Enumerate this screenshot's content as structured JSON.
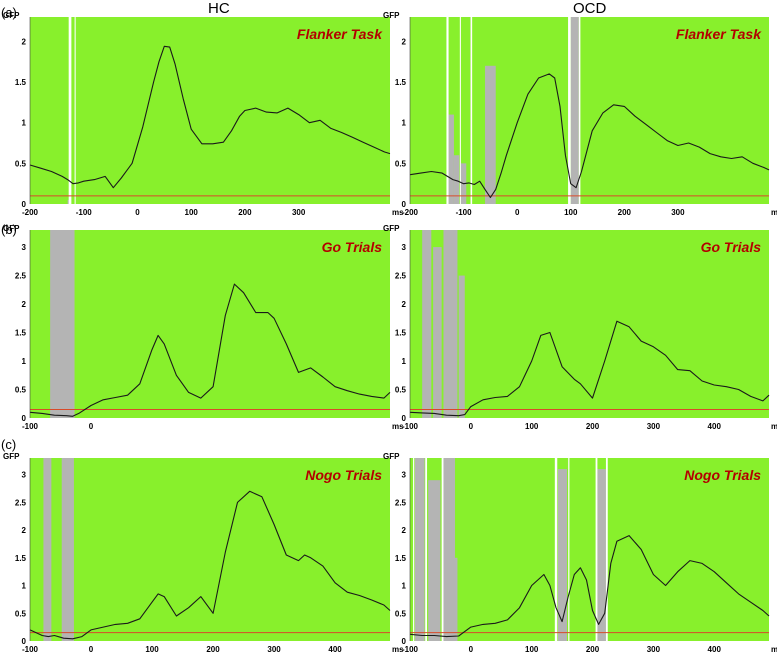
{
  "figure": {
    "columns": [
      "HC",
      "OCD"
    ],
    "rows": [
      "(a)",
      "(b)",
      "(c)"
    ],
    "background_color": "#88f02c",
    "curve_color": "#1a1a1a",
    "threshold_color": "#d94a2a",
    "significance_color": "#b4b4b4"
  },
  "chart_data": [
    {
      "type": "line",
      "group": "HC",
      "row": "(a)",
      "title": "Flanker Task",
      "ylabel": "GFP",
      "xlabel": "ms",
      "xlim": [
        -200,
        470
      ],
      "ylim": [
        0,
        2.3
      ],
      "xticks": [
        -200,
        -100,
        0,
        100,
        200,
        300
      ],
      "yticks": [
        0,
        0.5,
        1,
        1.5,
        2
      ],
      "threshold": 0.1,
      "white_gaps": [
        [
          -128,
          -123
        ],
        [
          -117,
          -115
        ]
      ],
      "significance": [
        [
          -130,
          -126,
          0.05
        ]
      ],
      "x": [
        -200,
        -180,
        -160,
        -140,
        -130,
        -120,
        -110,
        -100,
        -80,
        -60,
        -45,
        -30,
        -10,
        10,
        30,
        40,
        50,
        60,
        70,
        85,
        100,
        120,
        140,
        160,
        175,
        190,
        200,
        220,
        240,
        260,
        280,
        300,
        320,
        340,
        360,
        380,
        400,
        420,
        440,
        460,
        470
      ],
      "y": [
        0.48,
        0.44,
        0.4,
        0.34,
        0.3,
        0.25,
        0.26,
        0.28,
        0.3,
        0.34,
        0.2,
        0.32,
        0.5,
        0.95,
        1.5,
        1.75,
        1.94,
        1.93,
        1.72,
        1.3,
        0.92,
        0.74,
        0.74,
        0.76,
        0.9,
        1.08,
        1.15,
        1.18,
        1.13,
        1.12,
        1.18,
        1.1,
        1.0,
        1.03,
        0.93,
        0.88,
        0.82,
        0.76,
        0.7,
        0.64,
        0.62
      ]
    },
    {
      "type": "line",
      "group": "OCD",
      "row": "(a)",
      "title": "Flanker Task",
      "ylabel": "GFP",
      "xlabel": "ms",
      "xlim": [
        -200,
        470
      ],
      "ylim": [
        0,
        2.3
      ],
      "xticks": [
        -200,
        -100,
        0,
        100,
        200,
        300
      ],
      "yticks": [
        0,
        0.5,
        1,
        1.5,
        2
      ],
      "threshold": 0.1,
      "white_gaps": [
        [
          -132,
          -128
        ],
        [
          -107,
          -105
        ],
        [
          -87,
          -84
        ],
        [
          95,
          100
        ],
        [
          115,
          118
        ]
      ],
      "significance": [
        [
          -128,
          -118,
          1.1
        ],
        [
          -118,
          -108,
          0.6
        ],
        [
          -105,
          -95,
          0.5
        ],
        [
          -60,
          -40,
          1.7
        ],
        [
          100,
          115,
          2.3
        ]
      ],
      "x": [
        -200,
        -180,
        -160,
        -140,
        -130,
        -120,
        -110,
        -100,
        -90,
        -80,
        -70,
        -60,
        -50,
        -40,
        -30,
        -20,
        0,
        20,
        40,
        60,
        70,
        80,
        90,
        100,
        110,
        120,
        140,
        160,
        180,
        200,
        220,
        240,
        260,
        280,
        300,
        320,
        340,
        360,
        380,
        400,
        420,
        440,
        460,
        470
      ],
      "y": [
        0.36,
        0.38,
        0.4,
        0.38,
        0.34,
        0.3,
        0.28,
        0.25,
        0.26,
        0.24,
        0.28,
        0.18,
        0.08,
        0.18,
        0.38,
        0.6,
        1.0,
        1.35,
        1.55,
        1.6,
        1.55,
        1.2,
        0.6,
        0.25,
        0.2,
        0.4,
        0.9,
        1.12,
        1.22,
        1.2,
        1.08,
        0.98,
        0.88,
        0.78,
        0.72,
        0.75,
        0.7,
        0.62,
        0.58,
        0.56,
        0.58,
        0.5,
        0.45,
        0.42
      ]
    },
    {
      "type": "line",
      "group": "HC",
      "row": "(b)",
      "title": "Go Trials",
      "ylabel": "GFP",
      "xlabel": "ms",
      "xlim": [
        -100,
        490
      ],
      "ylim": [
        0,
        3.3
      ],
      "xticks": [
        -100,
        0
      ],
      "yticks": [
        0,
        0.5,
        1,
        1.5,
        2,
        2.5,
        3
      ],
      "threshold": 0.15,
      "white_gaps": [],
      "significance": [
        [
          -67,
          -27,
          3.3
        ]
      ],
      "x": [
        -100,
        -80,
        -60,
        -40,
        -30,
        -20,
        0,
        20,
        40,
        60,
        80,
        100,
        110,
        120,
        140,
        160,
        180,
        200,
        220,
        235,
        250,
        270,
        290,
        300,
        320,
        340,
        360,
        380,
        400,
        420,
        440,
        460,
        480,
        490
      ],
      "y": [
        0.1,
        0.08,
        0.05,
        0.04,
        0.03,
        0.08,
        0.22,
        0.32,
        0.36,
        0.4,
        0.6,
        1.2,
        1.45,
        1.3,
        0.75,
        0.45,
        0.35,
        0.55,
        1.8,
        2.35,
        2.2,
        1.85,
        1.85,
        1.75,
        1.3,
        0.8,
        0.88,
        0.72,
        0.55,
        0.48,
        0.42,
        0.38,
        0.35,
        0.45
      ]
    },
    {
      "type": "line",
      "group": "OCD",
      "row": "(b)",
      "title": "Go Trials",
      "ylabel": "GFP",
      "xlabel": "ms",
      "xlim": [
        -100,
        490
      ],
      "ylim": [
        0,
        3.3
      ],
      "xticks": [
        -100,
        0,
        100,
        200,
        300,
        400
      ],
      "yticks": [
        0,
        0.5,
        1,
        1.5,
        2,
        2.5,
        3
      ],
      "threshold": 0.15,
      "white_gaps": [],
      "significance": [
        [
          -80,
          -65,
          3.3
        ],
        [
          -62,
          -48,
          3.0
        ],
        [
          -45,
          -22,
          3.3
        ],
        [
          -20,
          -10,
          2.5
        ]
      ],
      "x": [
        -100,
        -80,
        -60,
        -40,
        -20,
        -10,
        0,
        20,
        40,
        60,
        80,
        100,
        115,
        130,
        150,
        170,
        180,
        200,
        220,
        240,
        260,
        280,
        300,
        320,
        340,
        360,
        380,
        400,
        420,
        440,
        460,
        480,
        490
      ],
      "y": [
        0.1,
        0.09,
        0.08,
        0.05,
        0.04,
        0.06,
        0.2,
        0.32,
        0.36,
        0.38,
        0.55,
        1.0,
        1.45,
        1.5,
        0.9,
        0.68,
        0.6,
        0.35,
        1.0,
        1.7,
        1.6,
        1.35,
        1.25,
        1.1,
        0.85,
        0.83,
        0.65,
        0.58,
        0.55,
        0.5,
        0.38,
        0.3,
        0.4
      ]
    },
    {
      "type": "line",
      "group": "HC",
      "row": "(c)",
      "title": "Nogo Trials",
      "ylabel": "GFP",
      "xlabel": "ms",
      "xlim": [
        -100,
        490
      ],
      "ylim": [
        0,
        3.3
      ],
      "xticks": [
        -100,
        0,
        100,
        200,
        300,
        400
      ],
      "yticks": [
        0,
        0.5,
        1,
        1.5,
        2,
        2.5,
        3
      ],
      "threshold": 0.15,
      "white_gaps": [],
      "significance": [
        [
          -78,
          -65,
          3.3
        ],
        [
          -48,
          -28,
          3.3
        ]
      ],
      "x": [
        -100,
        -80,
        -70,
        -60,
        -45,
        -30,
        -15,
        0,
        20,
        40,
        60,
        80,
        100,
        110,
        120,
        140,
        160,
        180,
        200,
        220,
        240,
        260,
        280,
        300,
        320,
        340,
        350,
        360,
        380,
        400,
        420,
        440,
        460,
        480,
        490
      ],
      "y": [
        0.2,
        0.1,
        0.08,
        0.1,
        0.05,
        0.04,
        0.08,
        0.2,
        0.25,
        0.3,
        0.32,
        0.4,
        0.7,
        0.85,
        0.8,
        0.45,
        0.6,
        0.8,
        0.5,
        1.6,
        2.5,
        2.7,
        2.6,
        2.1,
        1.55,
        1.45,
        1.55,
        1.5,
        1.35,
        1.05,
        0.88,
        0.82,
        0.74,
        0.65,
        0.55
      ]
    },
    {
      "type": "line",
      "group": "OCD",
      "row": "(c)",
      "title": "Nogo Trials",
      "ylabel": "GFP",
      "xlabel": "ms",
      "xlim": [
        -100,
        490
      ],
      "ylim": [
        0,
        3.3
      ],
      "xticks": [
        -100,
        0,
        100,
        200,
        300,
        400
      ],
      "yticks": [
        0,
        0.5,
        1,
        1.5,
        2,
        2.5,
        3
      ],
      "threshold": 0.15,
      "white_gaps": [
        [
          -95,
          -93
        ],
        [
          -75,
          -72
        ],
        [
          -48,
          -45
        ],
        [
          138,
          142
        ],
        [
          160,
          162
        ],
        [
          205,
          208
        ],
        [
          222,
          225
        ]
      ],
      "significance": [
        [
          -92,
          -76,
          3.3
        ],
        [
          -70,
          -50,
          2.9
        ],
        [
          -45,
          -26,
          3.3
        ],
        [
          -28,
          -22,
          1.5
        ],
        [
          143,
          158,
          3.1
        ],
        [
          208,
          222,
          3.1
        ]
      ],
      "x": [
        -100,
        -80,
        -60,
        -40,
        -20,
        0,
        20,
        40,
        60,
        80,
        100,
        120,
        130,
        140,
        150,
        160,
        170,
        180,
        190,
        200,
        210,
        220,
        230,
        240,
        260,
        280,
        300,
        320,
        340,
        360,
        380,
        400,
        420,
        440,
        460,
        480,
        490
      ],
      "y": [
        0.12,
        0.1,
        0.1,
        0.08,
        0.09,
        0.25,
        0.3,
        0.32,
        0.38,
        0.6,
        1.0,
        1.2,
        1.0,
        0.6,
        0.35,
        0.8,
        1.2,
        1.32,
        1.1,
        0.55,
        0.3,
        0.5,
        1.4,
        1.8,
        1.9,
        1.65,
        1.2,
        1.0,
        1.25,
        1.45,
        1.4,
        1.25,
        1.05,
        0.85,
        0.7,
        0.55,
        0.45
      ]
    }
  ]
}
